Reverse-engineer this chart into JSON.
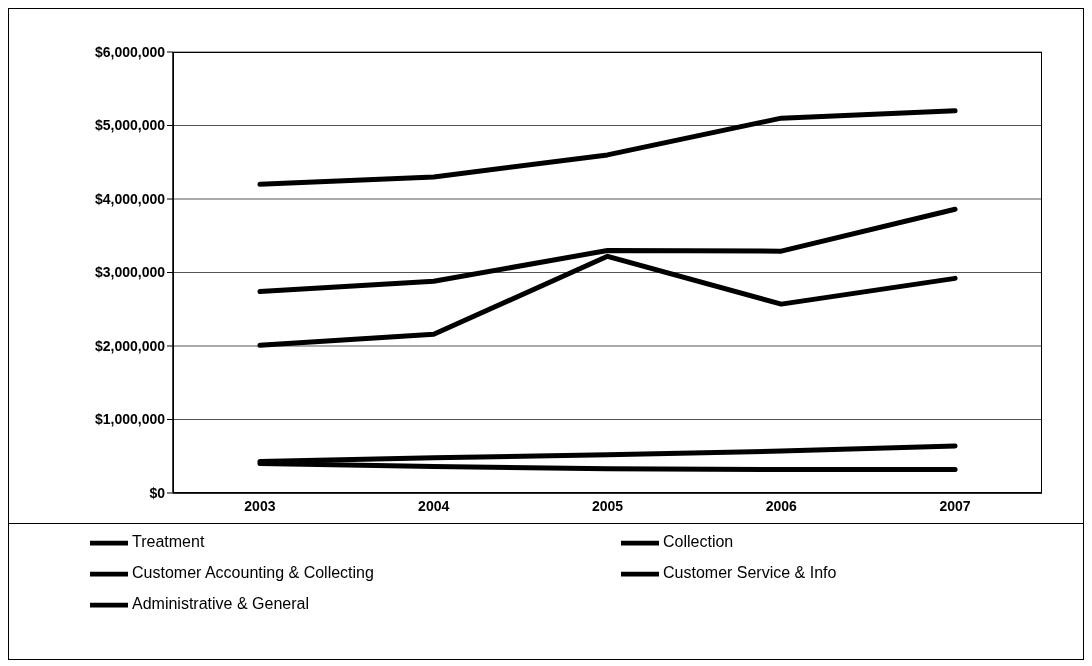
{
  "chart_data": {
    "type": "line",
    "categories": [
      "2003",
      "2004",
      "2005",
      "2006",
      "2007"
    ],
    "series": [
      {
        "name": "Treatment",
        "color": "#000000",
        "values": [
          4200000,
          4300000,
          4600000,
          5100000,
          5200000
        ]
      },
      {
        "name": "Collection",
        "color": "#000000",
        "values": [
          2740000,
          2880000,
          3300000,
          3290000,
          3860000
        ]
      },
      {
        "name": "Customer Accounting & Collecting",
        "color": "#000000",
        "values": [
          430000,
          480000,
          520000,
          570000,
          640000
        ]
      },
      {
        "name": "Customer Service & Info",
        "color": "#000000",
        "values": [
          400000,
          360000,
          330000,
          320000,
          320000
        ]
      },
      {
        "name": "Administrative & General",
        "color": "#000000",
        "values": [
          2010000,
          2160000,
          3220000,
          2570000,
          2920000
        ]
      }
    ],
    "ylim": [
      0,
      6000000
    ],
    "yticks": [
      {
        "value": 0,
        "label": "$0"
      },
      {
        "value": 1000000,
        "label": "$1,000,000"
      },
      {
        "value": 2000000,
        "label": "$2,000,000"
      },
      {
        "value": 3000000,
        "label": "$3,000,000"
      },
      {
        "value": 4000000,
        "label": "$4,000,000"
      },
      {
        "value": 5000000,
        "label": "$5,000,000"
      },
      {
        "value": 6000000,
        "label": "$6,000,000"
      }
    ],
    "grid": "y",
    "legend": "bottom",
    "marker": "none",
    "line_style": "solid"
  }
}
